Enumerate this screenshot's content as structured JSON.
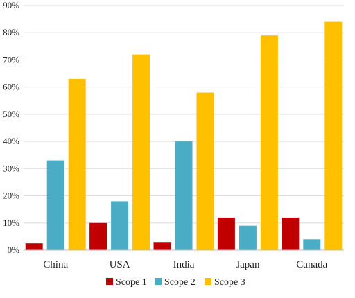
{
  "chart_data": {
    "type": "bar",
    "categories": [
      "China",
      "USA",
      "India",
      "Japan",
      "Canada"
    ],
    "series": [
      {
        "name": "Scope 1",
        "color": "#c00000",
        "values": [
          2.5,
          10,
          3,
          12,
          12
        ]
      },
      {
        "name": "Scope 2",
        "color": "#4bacc6",
        "values": [
          33,
          18,
          40,
          9,
          4
        ]
      },
      {
        "name": "Scope 3",
        "color": "#ffc000",
        "values": [
          63,
          72,
          58,
          79,
          84
        ]
      }
    ],
    "y_ticks": [
      "0%",
      "10%",
      "20%",
      "30%",
      "40%",
      "50%",
      "60%",
      "70%",
      "80%",
      "90%"
    ],
    "ylim": [
      0,
      90
    ],
    "ylabel": "",
    "xlabel": "",
    "title": "",
    "grid": true,
    "legend_position": "bottom"
  }
}
